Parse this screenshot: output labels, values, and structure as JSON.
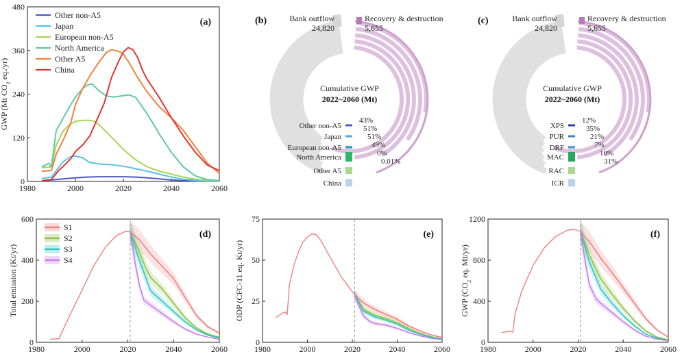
{
  "chart_data": [
    {
      "panel": "(a)",
      "type": "line",
      "xlim": [
        1980,
        2060
      ],
      "ylim": [
        0,
        480
      ],
      "xticks": [
        1980,
        2000,
        2020,
        2040,
        2060
      ],
      "yticks": [
        0,
        120,
        240,
        360,
        480
      ],
      "ylabel_main": "GWP (Mt CO",
      "ylabel_sub": "2",
      "ylabel_tail": " eq./yr)",
      "legend": "top-left",
      "series": [
        {
          "name": "Other non-A5",
          "color": "#4a5bbf",
          "x": [
            1986,
            1990,
            1995,
            2000,
            2005,
            2010,
            2015,
            2020,
            2025,
            2030,
            2035,
            2040,
            2045,
            2050,
            2055,
            2060
          ],
          "y": [
            2,
            4,
            7,
            10,
            12,
            13,
            13,
            13,
            12,
            10,
            7,
            4,
            2,
            1,
            0.5,
            0.3
          ]
        },
        {
          "name": "Japan",
          "color": "#56c1ea",
          "x": [
            1986,
            1990,
            1995,
            1998,
            2000,
            2003,
            2006,
            2010,
            2015,
            2020,
            2025,
            2030,
            2035,
            2040,
            2045,
            2050,
            2055,
            2060
          ],
          "y": [
            8,
            12,
            55,
            68,
            70,
            65,
            52,
            48,
            46,
            42,
            35,
            28,
            20,
            12,
            6,
            3,
            1,
            0.5
          ]
        },
        {
          "name": "European non-A5",
          "color": "#a8d45a",
          "x": [
            1986,
            1990,
            1992,
            1995,
            1998,
            2000,
            2003,
            2006,
            2008,
            2010,
            2015,
            2020,
            2025,
            2030,
            2035,
            2040,
            2045,
            2050,
            2055,
            2060
          ],
          "y": [
            38,
            40,
            100,
            140,
            158,
            165,
            168,
            168,
            165,
            155,
            122,
            88,
            60,
            40,
            28,
            20,
            12,
            6,
            3,
            1
          ]
        },
        {
          "name": "North America",
          "color": "#5ec8a8",
          "x": [
            1986,
            1989,
            1990,
            1992,
            1995,
            1998,
            2000,
            2003,
            2005,
            2007,
            2010,
            2013,
            2016,
            2019,
            2022,
            2025,
            2030,
            2035,
            2040,
            2045,
            2050,
            2055,
            2060
          ],
          "y": [
            40,
            50,
            40,
            140,
            175,
            210,
            232,
            255,
            265,
            268,
            248,
            235,
            232,
            235,
            238,
            232,
            185,
            130,
            80,
            40,
            15,
            5,
            2
          ]
        },
        {
          "name": "Other A5",
          "color": "#f57f3a",
          "x": [
            1986,
            1990,
            1992,
            1995,
            1998,
            2000,
            2003,
            2006,
            2010,
            2013,
            2015,
            2018,
            2020,
            2023,
            2026,
            2030,
            2035,
            2040,
            2045,
            2050,
            2055,
            2060
          ],
          "y": [
            28,
            30,
            75,
            115,
            160,
            210,
            255,
            290,
            330,
            355,
            362,
            358,
            350,
            320,
            285,
            245,
            205,
            175,
            140,
            95,
            50,
            22
          ]
        },
        {
          "name": "China",
          "color": "#e3342f",
          "x": [
            1986,
            1990,
            1993,
            1995,
            1998,
            2000,
            2003,
            2006,
            2009,
            2012,
            2015,
            2018,
            2020,
            2022,
            2024,
            2026,
            2028,
            2030,
            2035,
            2040,
            2045,
            2050,
            2055,
            2060
          ],
          "y": [
            2,
            5,
            30,
            42,
            62,
            82,
            100,
            125,
            170,
            215,
            285,
            330,
            356,
            368,
            362,
            340,
            305,
            280,
            230,
            175,
            125,
            80,
            45,
            30
          ]
        }
      ]
    },
    {
      "panel": "(b)",
      "type": "chord",
      "outflow_label": "Bank outflow",
      "outflow_value": "24,820",
      "recovery_label": "Recovery & destruction",
      "recovery_value": "5,655",
      "center_line1": "Cumulative GWP",
      "center_line2": "2022~2060 (Mt)",
      "groups": [
        "Other non-A5",
        "Japan",
        "European non-A5",
        "North America",
        "Other A5",
        "China"
      ],
      "shares": [
        {
          "name": "Other non-A5",
          "pct": "43%"
        },
        {
          "name": "Japan",
          "pct": "51%"
        },
        {
          "name": "European non-A5",
          "pct": "51%"
        },
        {
          "name": "North America",
          "pct": "49%"
        },
        {
          "name": "Other A5",
          "pct": "0%"
        },
        {
          "name": "China",
          "pct": "0.01%"
        }
      ],
      "colors": [
        "#4a5bbf",
        "#56a6e0",
        "#3ba3c8",
        "#2db56a",
        "#a8d98e",
        "#b9d3ee"
      ]
    },
    {
      "panel": "(c)",
      "type": "chord",
      "outflow_label": "Bank outflow",
      "outflow_value": "24,820",
      "recovery_label": "Recovery & destruction",
      "recovery_value": "5,655",
      "center_line1": "Cumulative GWP",
      "center_line2": "2022~2060 (Mt)",
      "groups": [
        "XPS",
        "PUR",
        "DRF",
        "MAC",
        "RAC",
        "ICR"
      ],
      "shares": [
        {
          "name": "XPS",
          "pct": "12%"
        },
        {
          "name": "PUR",
          "pct": "35%"
        },
        {
          "name": "DRF",
          "pct": "21%"
        },
        {
          "name": "MAC",
          "pct": "7%"
        },
        {
          "name": "RAC",
          "pct": "10%"
        },
        {
          "name": "ICR",
          "pct": "31%"
        }
      ],
      "colors": [
        "#2e3fa8",
        "#3b7fd0",
        "#5aa0d8",
        "#27a85a",
        "#a8d98e",
        "#b9d3ee"
      ]
    },
    {
      "panel": "(d)",
      "type": "line",
      "xlim": [
        1980,
        2060
      ],
      "ylim": [
        0,
        600
      ],
      "xticks": [
        1980,
        2000,
        2020,
        2040,
        2060
      ],
      "yticks": [
        0,
        200,
        400,
        600
      ],
      "ylabel_main": "Total emission (Kt/yr)",
      "legend": "top-left",
      "history": {
        "x": [
          1986,
          1990,
          1991,
          1995,
          2000,
          2005,
          2010,
          2015,
          2019,
          2021
        ],
        "y": [
          15,
          18,
          45,
          140,
          255,
          370,
          460,
          520,
          540,
          538
        ]
      },
      "series": [
        {
          "name": "S1",
          "color": "#f07f7f",
          "x": [
            2021,
            2025,
            2030,
            2035,
            2040,
            2045,
            2050,
            2055,
            2060
          ],
          "y": [
            538,
            500,
            430,
            370,
            310,
            220,
            130,
            75,
            45
          ]
        },
        {
          "name": "S2",
          "color": "#8cbf3e",
          "x": [
            2021,
            2025,
            2028,
            2030,
            2035,
            2040,
            2045,
            2050,
            2055,
            2060
          ],
          "y": [
            538,
            440,
            360,
            315,
            260,
            190,
            120,
            70,
            40,
            25
          ]
        },
        {
          "name": "S3",
          "color": "#2ec4c4",
          "x": [
            2021,
            2025,
            2030,
            2035,
            2040,
            2045,
            2050,
            2055,
            2060
          ],
          "y": [
            538,
            400,
            250,
            200,
            150,
            100,
            60,
            35,
            20
          ]
        },
        {
          "name": "S4",
          "color": "#c77ef0",
          "x": [
            2021,
            2023,
            2025,
            2027,
            2030,
            2035,
            2040,
            2045,
            2050,
            2055,
            2060
          ],
          "y": [
            538,
            400,
            280,
            205,
            180,
            140,
            100,
            65,
            40,
            25,
            15
          ]
        }
      ]
    },
    {
      "panel": "(e)",
      "type": "line",
      "xlim": [
        1980,
        2060
      ],
      "ylim": [
        0,
        75
      ],
      "xticks": [
        1980,
        2000,
        2020,
        2040,
        2060
      ],
      "yticks": [
        0,
        25,
        50,
        75
      ],
      "ylabel_main": "ODP (CFC-11 eq. Kt/yr)",
      "history": {
        "x": [
          1986,
          1988,
          1990,
          1991,
          1992,
          1994,
          1996,
          1998,
          2000,
          2002,
          2004,
          2006,
          2010,
          2015,
          2021
        ],
        "y": [
          15,
          17,
          18.5,
          17,
          35,
          47,
          55,
          61,
          64,
          66,
          65.5,
          62,
          52,
          40,
          29
        ]
      },
      "series": [
        {
          "name": "S1",
          "color": "#f07f7f",
          "x": [
            2021,
            2025,
            2030,
            2035,
            2040,
            2045,
            2050,
            2055,
            2060
          ],
          "y": [
            29,
            24,
            20,
            17,
            14,
            10,
            7,
            4.5,
            3
          ]
        },
        {
          "name": "S2",
          "color": "#8cbf3e",
          "x": [
            2021,
            2025,
            2030,
            2035,
            2040,
            2045,
            2050,
            2055,
            2060
          ],
          "y": [
            29,
            20,
            16.5,
            14.5,
            12,
            8.5,
            5.5,
            3.5,
            2
          ]
        },
        {
          "name": "S3",
          "color": "#2ec4c4",
          "x": [
            2021,
            2025,
            2030,
            2035,
            2040,
            2045,
            2050,
            2055,
            2060
          ],
          "y": [
            29,
            19,
            15.5,
            13.5,
            11,
            7.5,
            5,
            3,
            1.8
          ]
        },
        {
          "name": "S4",
          "color": "#c77ef0",
          "x": [
            2021,
            2023,
            2025,
            2028,
            2030,
            2035,
            2040,
            2045,
            2050,
            2055,
            2060
          ],
          "y": [
            29,
            22,
            16,
            12.5,
            11.5,
            10.5,
            8.5,
            6,
            4,
            2.5,
            1.5
          ]
        }
      ]
    },
    {
      "panel": "(f)",
      "type": "line",
      "xlim": [
        1980,
        2060
      ],
      "ylim": [
        0,
        1200
      ],
      "xticks": [
        1980,
        2000,
        2020,
        2040,
        2060
      ],
      "yticks": [
        0,
        400,
        800,
        1200
      ],
      "ylabel_main": "GWP (CO",
      "ylabel_sub": "2",
      "ylabel_tail": " eq. Mt/yr)",
      "history": {
        "x": [
          1986,
          1990,
          1991,
          1992,
          1995,
          2000,
          2005,
          2010,
          2015,
          2018,
          2021
        ],
        "y": [
          95,
          110,
          100,
          280,
          500,
          750,
          920,
          1030,
          1090,
          1100,
          1080
        ]
      },
      "series": [
        {
          "name": "S1",
          "color": "#f07f7f",
          "x": [
            2021,
            2025,
            2030,
            2035,
            2040,
            2045,
            2050,
            2055,
            2060
          ],
          "y": [
            1080,
            980,
            820,
            680,
            530,
            380,
            230,
            120,
            50
          ]
        },
        {
          "name": "S2",
          "color": "#8cbf3e",
          "x": [
            2021,
            2025,
            2030,
            2035,
            2040,
            2045,
            2050,
            2055,
            2060
          ],
          "y": [
            1080,
            850,
            620,
            470,
            330,
            210,
            110,
            50,
            25
          ]
        },
        {
          "name": "S3",
          "color": "#2ec4c4",
          "x": [
            2021,
            2025,
            2030,
            2035,
            2040,
            2045,
            2050,
            2055,
            2060
          ],
          "y": [
            1080,
            780,
            520,
            380,
            260,
            160,
            80,
            40,
            18
          ]
        },
        {
          "name": "S4",
          "color": "#c77ef0",
          "x": [
            2021,
            2023,
            2025,
            2028,
            2030,
            2035,
            2040,
            2045,
            2050,
            2055,
            2060
          ],
          "y": [
            1080,
            800,
            560,
            420,
            380,
            290,
            200,
            120,
            60,
            30,
            15
          ]
        }
      ]
    }
  ]
}
